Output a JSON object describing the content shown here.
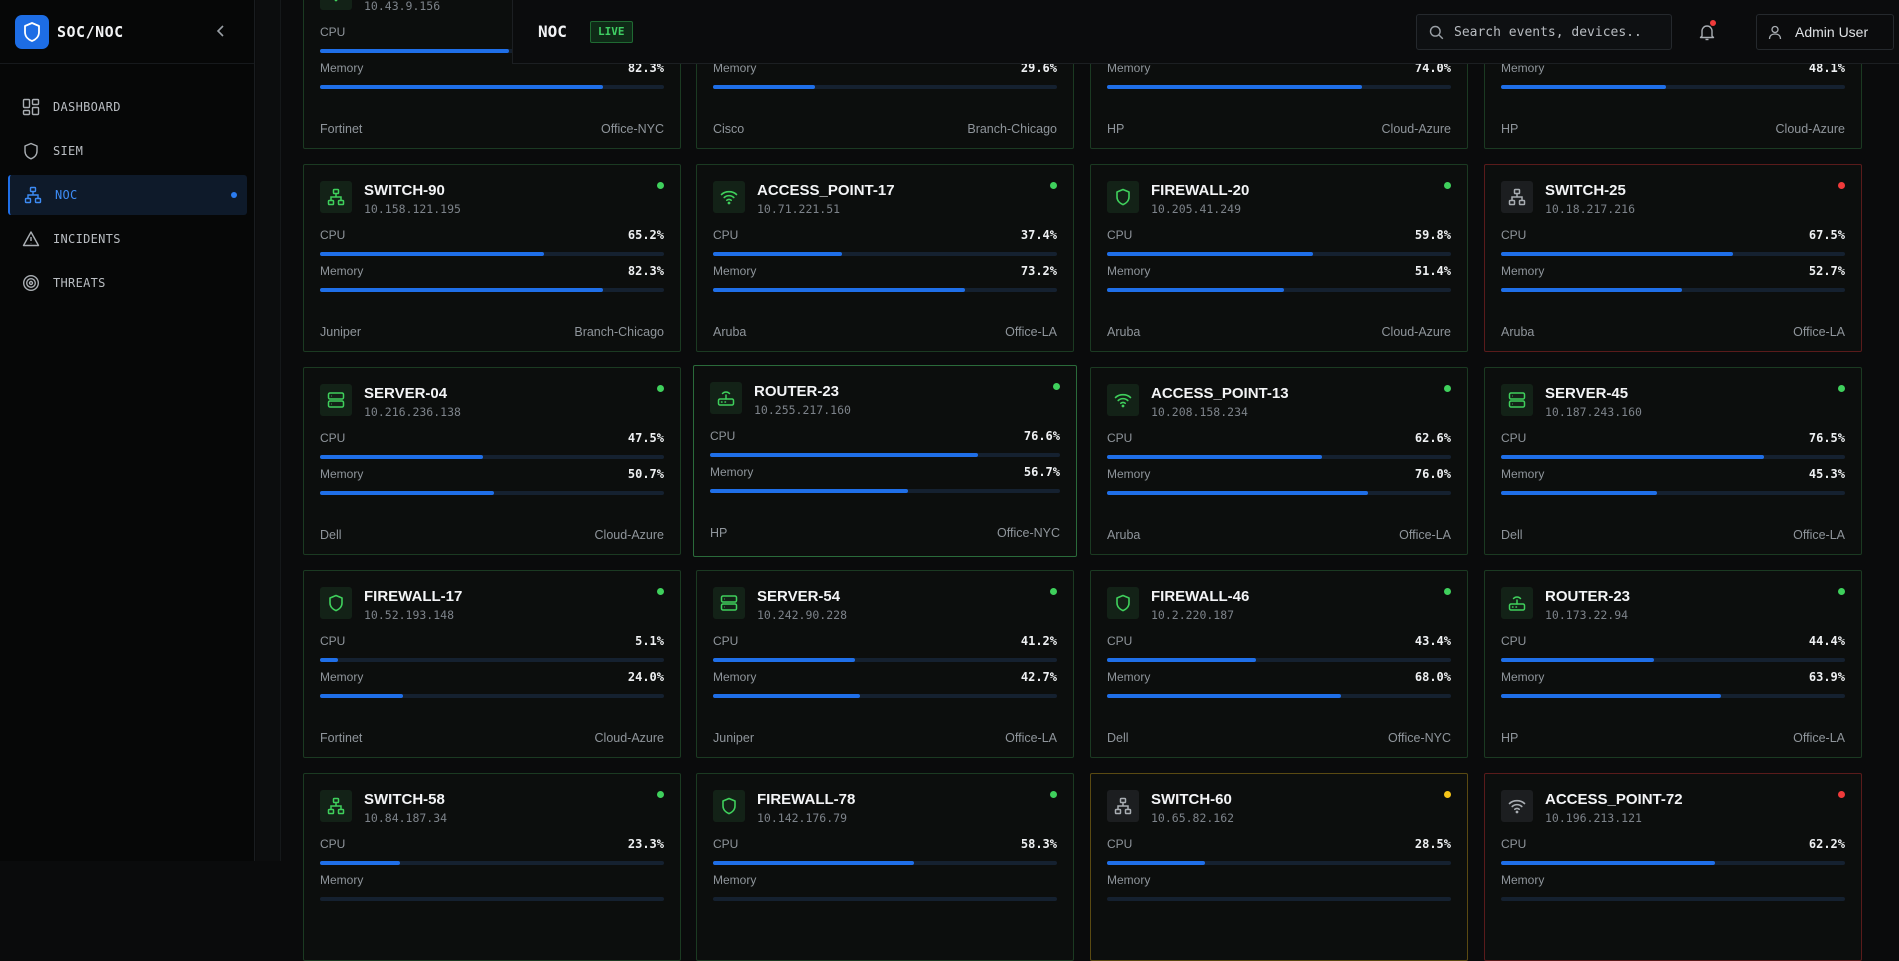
{
  "app": {
    "name": "SOC/NOC"
  },
  "sidebar": {
    "items": [
      {
        "label": "DASHBOARD",
        "icon": "dashboard-icon"
      },
      {
        "label": "SIEM",
        "icon": "shield-icon"
      },
      {
        "label": "NOC",
        "icon": "network-icon",
        "active": true
      },
      {
        "label": "INCIDENTS",
        "icon": "alert-triangle-icon"
      },
      {
        "label": "THREATS",
        "icon": "target-icon"
      }
    ]
  },
  "header": {
    "title": "NOC",
    "badge": "LIVE",
    "search_placeholder": "Search events, devices..",
    "user_name": "Admin User"
  },
  "colors": {
    "accent": "#1f6fe8",
    "ok": "#3fd05c",
    "warn": "#f5c518",
    "error": "#f03a3a"
  },
  "labels": {
    "cpu": "CPU",
    "memory": "Memory"
  },
  "devices": [
    {
      "name": "",
      "ip": "10.43.9.156",
      "type": "ap",
      "status": "ok",
      "cpu": "",
      "cpu_pct": 55,
      "mem": "82.3%",
      "mem_pct": 82.3,
      "vendor": "Fortinet",
      "site": "Office-NYC"
    },
    {
      "name": "",
      "ip": "",
      "type": "switch",
      "status": "ok",
      "cpu": "",
      "cpu_pct": 0,
      "mem": "29.6%",
      "mem_pct": 29.6,
      "vendor": "Cisco",
      "site": "Branch-Chicago"
    },
    {
      "name": "",
      "ip": "",
      "type": "switch",
      "status": "ok",
      "cpu": "",
      "cpu_pct": 0,
      "mem": "74.0%",
      "mem_pct": 74.0,
      "vendor": "HP",
      "site": "Cloud-Azure"
    },
    {
      "name": "",
      "ip": "",
      "type": "switch",
      "status": "ok",
      "cpu": "",
      "cpu_pct": 0,
      "mem": "48.1%",
      "mem_pct": 48.1,
      "vendor": "HP",
      "site": "Cloud-Azure"
    },
    {
      "name": "SWITCH-90",
      "ip": "10.158.121.195",
      "type": "switch",
      "status": "ok",
      "cpu": "65.2%",
      "cpu_pct": 65.2,
      "mem": "82.3%",
      "mem_pct": 82.3,
      "vendor": "Juniper",
      "site": "Branch-Chicago"
    },
    {
      "name": "ACCESS_POINT-17",
      "ip": "10.71.221.51",
      "type": "ap",
      "status": "ok",
      "cpu": "37.4%",
      "cpu_pct": 37.4,
      "mem": "73.2%",
      "mem_pct": 73.2,
      "vendor": "Aruba",
      "site": "Office-LA"
    },
    {
      "name": "FIREWALL-20",
      "ip": "10.205.41.249",
      "type": "firewall",
      "status": "ok",
      "cpu": "59.8%",
      "cpu_pct": 59.8,
      "mem": "51.4%",
      "mem_pct": 51.4,
      "vendor": "Aruba",
      "site": "Cloud-Azure"
    },
    {
      "name": "SWITCH-25",
      "ip": "10.18.217.216",
      "type": "switch",
      "status": "error",
      "cpu": "67.5%",
      "cpu_pct": 67.5,
      "mem": "52.7%",
      "mem_pct": 52.7,
      "vendor": "Aruba",
      "site": "Office-LA"
    },
    {
      "name": "SERVER-04",
      "ip": "10.216.236.138",
      "type": "server",
      "status": "ok",
      "cpu": "47.5%",
      "cpu_pct": 47.5,
      "mem": "50.7%",
      "mem_pct": 50.7,
      "vendor": "Dell",
      "site": "Cloud-Azure"
    },
    {
      "name": "ROUTER-23",
      "ip": "10.255.217.160",
      "type": "router",
      "status": "ok",
      "cpu": "76.6%",
      "cpu_pct": 76.6,
      "mem": "56.7%",
      "mem_pct": 56.7,
      "vendor": "HP",
      "site": "Office-NYC",
      "selected": true
    },
    {
      "name": "ACCESS_POINT-13",
      "ip": "10.208.158.234",
      "type": "ap",
      "status": "ok",
      "cpu": "62.6%",
      "cpu_pct": 62.6,
      "mem": "76.0%",
      "mem_pct": 76.0,
      "vendor": "Aruba",
      "site": "Office-LA"
    },
    {
      "name": "SERVER-45",
      "ip": "10.187.243.160",
      "type": "server",
      "status": "ok",
      "cpu": "76.5%",
      "cpu_pct": 76.5,
      "mem": "45.3%",
      "mem_pct": 45.3,
      "vendor": "Dell",
      "site": "Office-LA"
    },
    {
      "name": "FIREWALL-17",
      "ip": "10.52.193.148",
      "type": "firewall",
      "status": "ok",
      "cpu": "5.1%",
      "cpu_pct": 5.1,
      "mem": "24.0%",
      "mem_pct": 24.0,
      "vendor": "Fortinet",
      "site": "Cloud-Azure"
    },
    {
      "name": "SERVER-54",
      "ip": "10.242.90.228",
      "type": "server",
      "status": "ok",
      "cpu": "41.2%",
      "cpu_pct": 41.2,
      "mem": "42.7%",
      "mem_pct": 42.7,
      "vendor": "Juniper",
      "site": "Office-LA"
    },
    {
      "name": "FIREWALL-46",
      "ip": "10.2.220.187",
      "type": "firewall",
      "status": "ok",
      "cpu": "43.4%",
      "cpu_pct": 43.4,
      "mem": "68.0%",
      "mem_pct": 68.0,
      "vendor": "Dell",
      "site": "Office-NYC"
    },
    {
      "name": "ROUTER-23",
      "ip": "10.173.22.94",
      "type": "router",
      "status": "ok",
      "cpu": "44.4%",
      "cpu_pct": 44.4,
      "mem": "63.9%",
      "mem_pct": 63.9,
      "vendor": "HP",
      "site": "Office-LA"
    },
    {
      "name": "SWITCH-58",
      "ip": "10.84.187.34",
      "type": "switch",
      "status": "ok",
      "cpu": "23.3%",
      "cpu_pct": 23.3,
      "mem": "",
      "mem_pct": 0,
      "vendor": "",
      "site": ""
    },
    {
      "name": "FIREWALL-78",
      "ip": "10.142.176.79",
      "type": "firewall",
      "status": "ok",
      "cpu": "58.3%",
      "cpu_pct": 58.3,
      "mem": "",
      "mem_pct": 0,
      "vendor": "",
      "site": ""
    },
    {
      "name": "SWITCH-60",
      "ip": "10.65.82.162",
      "type": "switch",
      "status": "warn",
      "cpu": "28.5%",
      "cpu_pct": 28.5,
      "mem": "",
      "mem_pct": 0,
      "vendor": "",
      "site": ""
    },
    {
      "name": "ACCESS_POINT-72",
      "ip": "10.196.213.121",
      "type": "ap",
      "status": "error",
      "cpu": "62.2%",
      "cpu_pct": 62.2,
      "mem": "",
      "mem_pct": 0,
      "vendor": "",
      "site": ""
    }
  ]
}
